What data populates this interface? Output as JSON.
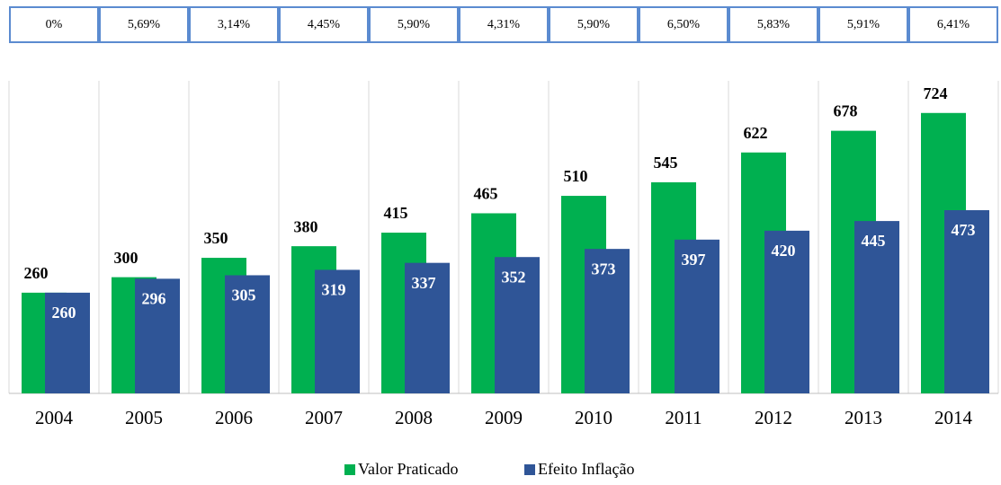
{
  "chart_data": {
    "type": "bar",
    "rate_labels": [
      "0%",
      "5,69%",
      "3,14%",
      "4,45%",
      "5,90%",
      "4,31%",
      "5,90%",
      "6,50%",
      "5,83%",
      "5,91%",
      "6,41%"
    ],
    "categories": [
      "2004",
      "2005",
      "2006",
      "2007",
      "2008",
      "2009",
      "2010",
      "2011",
      "2012",
      "2013",
      "2014"
    ],
    "series": [
      {
        "name": "Valor Praticado",
        "color": "#00b050",
        "values": [
          260,
          300,
          350,
          380,
          415,
          465,
          510,
          545,
          622,
          678,
          724
        ]
      },
      {
        "name": "Efeito Inflação",
        "color": "#2f5597",
        "values": [
          260,
          296,
          305,
          319,
          337,
          352,
          373,
          397,
          420,
          445,
          473
        ]
      }
    ],
    "ylim": [
      0,
      800
    ],
    "legend": "bottom"
  }
}
